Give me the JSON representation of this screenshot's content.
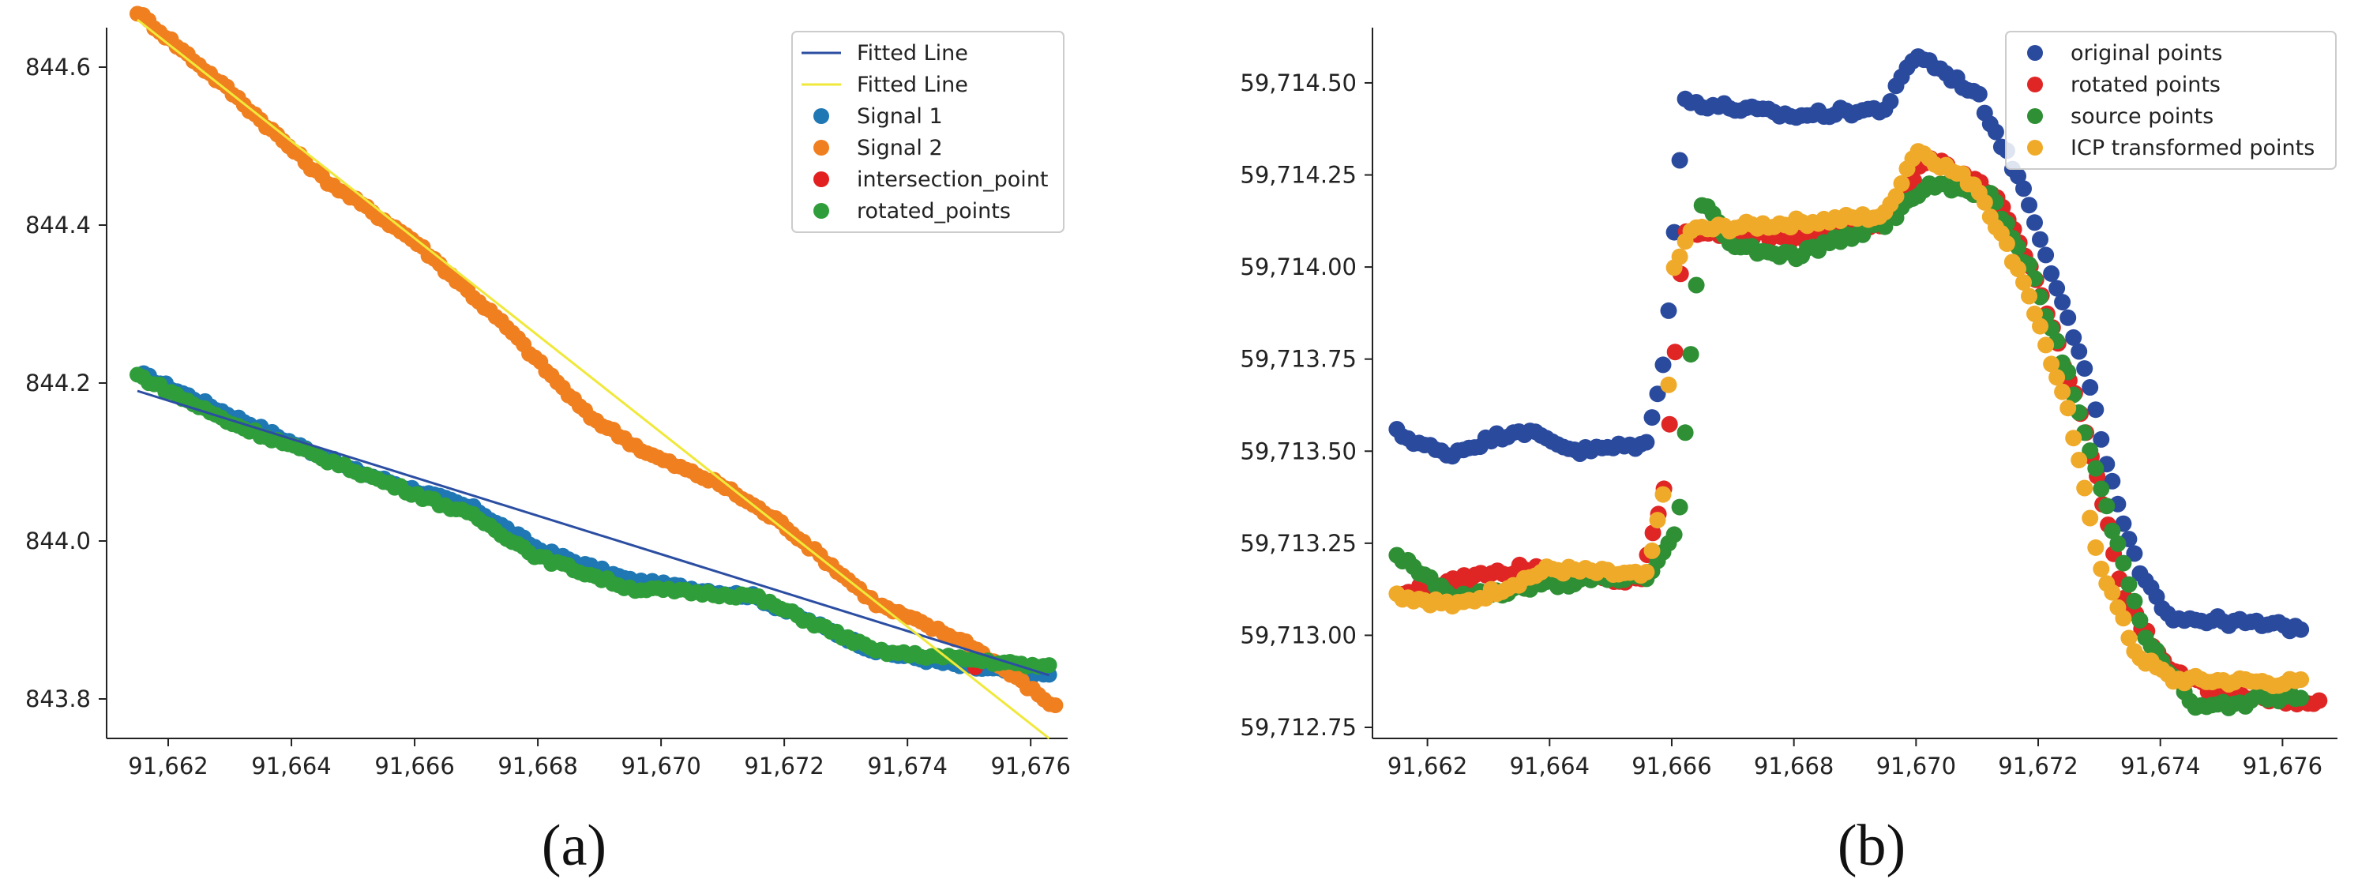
{
  "chart_data": [
    {
      "type": "scatter",
      "caption": "(a)",
      "xlim": [
        91661.0,
        91676.6
      ],
      "ylim": [
        843.75,
        844.65
      ],
      "xticks": [
        91662,
        91664,
        91666,
        91668,
        91670,
        91672,
        91674,
        91676
      ],
      "xtick_labels": [
        "91,662",
        "91,664",
        "91,666",
        "91,668",
        "91,670",
        "91,672",
        "91,674",
        "91,676"
      ],
      "yticks": [
        843.8,
        844.0,
        844.2,
        844.4,
        844.6
      ],
      "ytick_labels": [
        "843.8",
        "844.0",
        "844.2",
        "844.4",
        "844.6"
      ],
      "legend_position": "top-right",
      "lines": [
        {
          "name": "Fitted Line",
          "color": "#2b4ea2",
          "x": [
            91661.5,
            91676.3
          ],
          "y": [
            844.19,
            843.83
          ]
        },
        {
          "name": "Fitted Line",
          "color": "#f0e83a",
          "x": [
            91661.5,
            91676.3
          ],
          "y": [
            844.66,
            843.75
          ]
        }
      ],
      "series": [
        {
          "name": "Signal 1",
          "color": "#1f77b4",
          "x_start": 91661.6,
          "x_end": 91676.3,
          "anchors_x": [
            91661.6,
            91663.0,
            91665.0,
            91667.0,
            91668.0,
            91669.5,
            91671.5,
            91673.5,
            91675.0,
            91676.3
          ],
          "anchors_y": [
            844.21,
            844.16,
            844.09,
            844.04,
            843.99,
            843.95,
            843.93,
            843.86,
            843.84,
            843.83
          ]
        },
        {
          "name": "Signal 2",
          "color": "#f07f1f",
          "x_start": 91661.5,
          "x_end": 91676.4,
          "anchors_x": [
            91661.5,
            91663.0,
            91664.5,
            91666.0,
            91667.5,
            91668.8,
            91669.8,
            91671.0,
            91672.0,
            91673.5,
            91675.0,
            91676.4
          ],
          "anchors_y": [
            844.67,
            844.57,
            844.46,
            844.38,
            844.27,
            844.16,
            844.11,
            844.07,
            844.02,
            843.92,
            843.87,
            843.79
          ]
        },
        {
          "name": "intersection_point",
          "color": "#e22020",
          "x": [
            91675.1
          ],
          "y": [
            843.84
          ]
        },
        {
          "name": "rotated_points",
          "color": "#2f9e3a",
          "x_start": 91661.5,
          "x_end": 91676.3,
          "anchors_x": [
            91661.5,
            91663.0,
            91665.0,
            91667.0,
            91668.0,
            91669.5,
            91671.5,
            91673.5,
            91675.0,
            91676.3
          ],
          "anchors_y": [
            844.21,
            844.15,
            844.09,
            844.03,
            843.98,
            843.94,
            843.93,
            843.86,
            843.85,
            843.84
          ]
        }
      ],
      "legend": [
        "Fitted Line",
        "Fitted Line",
        "Signal 1",
        "Signal 2",
        "intersection_point",
        "rotated_points"
      ]
    },
    {
      "type": "scatter",
      "caption": "(b)",
      "xlim": [
        91661.1,
        91676.9
      ],
      "ylim": [
        59712.72,
        59714.65
      ],
      "xticks": [
        91662,
        91664,
        91666,
        91668,
        91670,
        91672,
        91674,
        91676
      ],
      "xtick_labels": [
        "91,662",
        "91,664",
        "91,666",
        "91,668",
        "91,670",
        "91,672",
        "91,674",
        "91,676"
      ],
      "yticks": [
        59712.75,
        59713.0,
        59713.25,
        59713.5,
        59713.75,
        59714.0,
        59714.25,
        59714.5
      ],
      "ytick_labels": [
        "59,712.75",
        "59,713.00",
        "59,713.25",
        "59,713.50",
        "59,713.75",
        "59,714.00",
        "59,714.25",
        "59,714.50"
      ],
      "legend_position": "top-right",
      "series": [
        {
          "name": "original points",
          "color": "#2a4a9e",
          "x_start": 91661.5,
          "x_end": 91676.3,
          "anchors_x": [
            91661.5,
            91662.3,
            91663.5,
            91664.5,
            91665.6,
            91665.9,
            91666.2,
            91668.0,
            91669.5,
            91670.0,
            91671.0,
            91671.8,
            91672.3,
            91672.8,
            91673.3,
            91673.7,
            91674.2,
            91676.3
          ],
          "anchors_y": [
            59713.55,
            59713.49,
            59713.56,
            59713.5,
            59713.52,
            59713.78,
            59714.45,
            59714.41,
            59714.43,
            59714.58,
            59714.47,
            59714.2,
            59713.95,
            59713.7,
            59713.35,
            59713.15,
            59713.05,
            59713.02
          ]
        },
        {
          "name": "rotated points",
          "color": "#e02525",
          "x_start": 91661.6,
          "x_end": 91676.6,
          "anchors_x": [
            91661.6,
            91663.5,
            91665.5,
            91665.9,
            91666.2,
            91668.0,
            91669.5,
            91670.2,
            91671.3,
            91672.0,
            91672.8,
            91673.4,
            91674.2,
            91675.0,
            91676.6
          ],
          "anchors_y": [
            59713.12,
            59713.18,
            59713.15,
            59713.42,
            59714.1,
            59714.08,
            59714.12,
            59714.3,
            59714.2,
            59713.95,
            59713.55,
            59713.1,
            59712.9,
            59712.84,
            59712.82
          ]
        },
        {
          "name": "source points",
          "color": "#2e8f35",
          "x_start": 91661.5,
          "x_end": 91676.3,
          "anchors_x": [
            91661.5,
            91662.5,
            91664.0,
            91665.6,
            91666.1,
            91666.5,
            91667.0,
            91668.0,
            91669.5,
            91670.2,
            91671.2,
            91671.9,
            91672.5,
            91673.2,
            91673.8,
            91674.6,
            91676.3
          ],
          "anchors_y": [
            59713.22,
            59713.1,
            59713.14,
            59713.16,
            59713.28,
            59714.18,
            59714.06,
            59714.03,
            59714.12,
            59714.22,
            59714.2,
            59713.98,
            59713.7,
            59713.3,
            59712.98,
            59712.8,
            59712.84
          ]
        },
        {
          "name": "ICP transformed points",
          "color": "#f0aa2a",
          "x_start": 91661.5,
          "x_end": 91676.3,
          "anchors_x": [
            91661.5,
            91662.5,
            91664.0,
            91665.6,
            91665.9,
            91666.0,
            91666.3,
            91668.0,
            91669.5,
            91670.0,
            91671.0,
            91671.8,
            91672.5,
            91673.0,
            91673.6,
            91674.2,
            91676.3
          ],
          "anchors_y": [
            59713.11,
            59713.08,
            59713.18,
            59713.16,
            59713.42,
            59713.97,
            59714.1,
            59714.12,
            59714.14,
            59714.32,
            59714.22,
            59713.95,
            59713.6,
            59713.2,
            59712.95,
            59712.88,
            59712.87
          ]
        }
      ],
      "legend": [
        "original points",
        "rotated points",
        "source points",
        "ICP transformed points"
      ]
    }
  ]
}
